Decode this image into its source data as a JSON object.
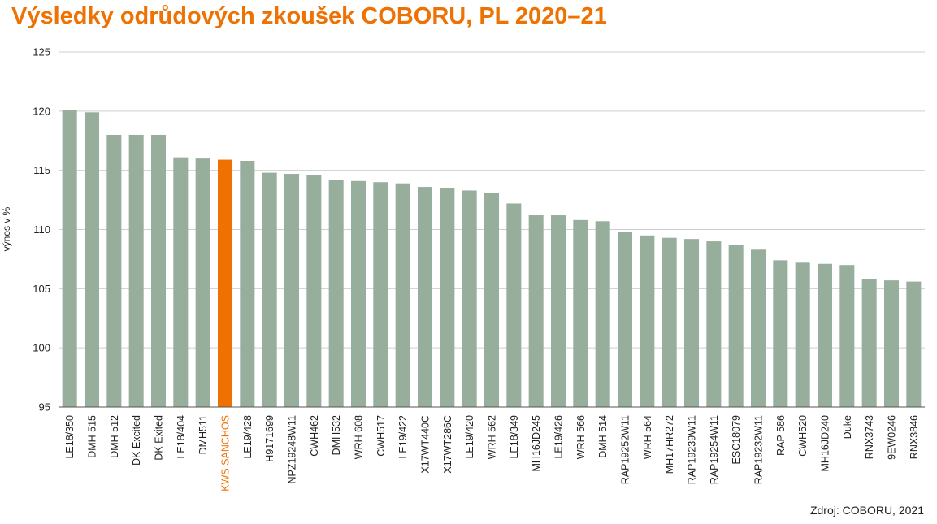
{
  "title": "Výsledky odrůdových zkoušek COBORU, PL 2020–21",
  "source": "Zdroj: COBORU, 2021",
  "colors": {
    "bar": "#98ae9d",
    "highlight": "#ee7203",
    "title": "#ee7203",
    "grid": "#cfcfcf"
  },
  "chart_data": {
    "type": "bar",
    "title": "Výsledky odrůdových zkoušek COBORU, PL 2020–21",
    "xlabel": "",
    "ylabel": "výnos v %",
    "ylim": [
      95,
      125
    ],
    "yticks": [
      95,
      100,
      105,
      110,
      115,
      120,
      125
    ],
    "grid": true,
    "highlight": "KWS SANCHOS",
    "categories": [
      "LE18/350",
      "DMH 515",
      "DMH 512",
      "DK Excited",
      "DK Exited",
      "LE18/404",
      "DMH511",
      "KWS SANCHOS",
      "LE19/428",
      "H9171699",
      "NPZ19248W11",
      "CWH462",
      "DMH532",
      "WRH 608",
      "CWH517",
      "LE19/422",
      "X17WT440C",
      "X17WT286C",
      "LE19/420",
      "WRH 562",
      "LE18/349",
      "MH16JD245",
      "LE19/426",
      "WRH 566",
      "DMH 514",
      "RAP19252W11",
      "WRH 564",
      "MH17HR272",
      "RAP19239W11",
      "RAP19254W11",
      "ESC18079",
      "RAP19232W11",
      "RAP 586",
      "CWH520",
      "MH16JD240",
      "Duke",
      "RNX3743",
      "9EW0246",
      "RNX3846"
    ],
    "values": [
      120.1,
      119.9,
      118.0,
      118.0,
      118.0,
      116.1,
      116.0,
      115.9,
      115.8,
      114.8,
      114.7,
      114.6,
      114.2,
      114.1,
      114.0,
      113.9,
      113.6,
      113.5,
      113.3,
      113.1,
      112.2,
      111.2,
      111.2,
      110.8,
      110.7,
      109.8,
      109.5,
      109.3,
      109.2,
      109.0,
      108.7,
      108.3,
      107.4,
      107.2,
      107.1,
      107.0,
      105.8,
      105.7,
      105.6
    ]
  }
}
